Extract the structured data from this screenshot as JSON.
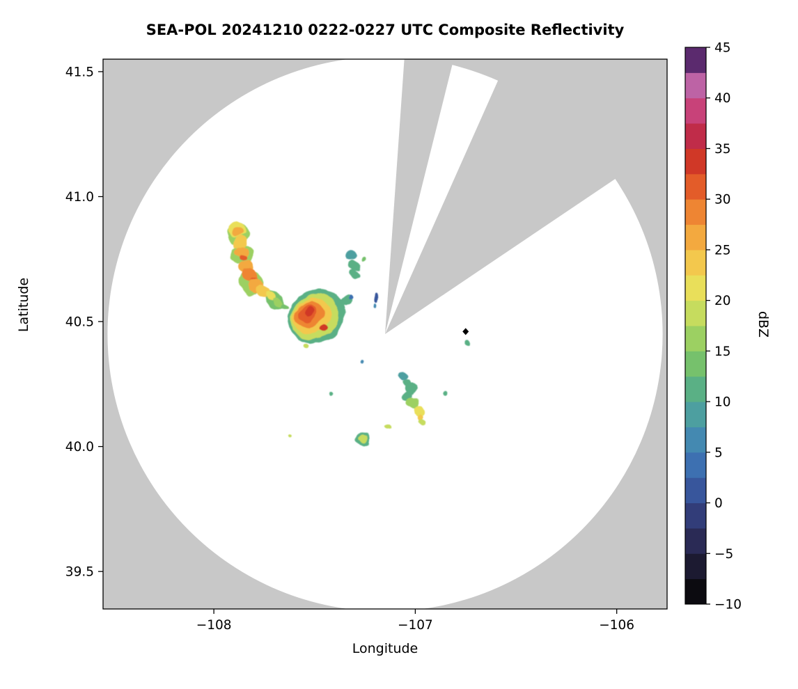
{
  "chart_data": {
    "type": "heatmap",
    "title": "SEA-POL 20241210 0222-0227 UTC Composite Reflectivity",
    "xlabel": "Longitude",
    "ylabel": "Latitude",
    "xlim": [
      -108.55,
      -105.75
    ],
    "ylim": [
      39.35,
      41.55
    ],
    "xticks": [
      -108,
      -107,
      -106
    ],
    "xtick_labels": [
      "−108",
      "−107",
      "−106"
    ],
    "yticks": [
      39.5,
      40.0,
      40.5,
      41.0,
      41.5
    ],
    "ytick_labels": [
      "39.5",
      "40.0",
      "40.5",
      "41.0",
      "41.5"
    ],
    "grid": false,
    "background_outside_range_color": "#c8c8c8",
    "coverage": {
      "center_lon": -107.15,
      "center_lat": 40.45,
      "radius_deg_lat": 1.11,
      "fill_color": "#ffffff",
      "blocked_sectors": [
        {
          "azimuth_start_deg": 4,
          "azimuth_end_deg": 14
        },
        {
          "azimuth_start_deg": 24,
          "azimuth_end_deg": 56
        }
      ]
    },
    "site_marker": {
      "lon": -106.75,
      "lat": 40.46,
      "shape": "diamond",
      "color": "#000000"
    },
    "colorbar": {
      "label": "dBZ",
      "vmin": -10,
      "vmax": 45,
      "bin_size": 2.5,
      "ticks": [
        45,
        40,
        35,
        30,
        25,
        20,
        15,
        10,
        5,
        0,
        -5,
        -10
      ],
      "tick_labels": [
        "45",
        "40",
        "35",
        "30",
        "25",
        "20",
        "15",
        "10",
        "5",
        "0",
        "−5",
        "−10"
      ],
      "colors_bottom_to_top": [
        "#0c0b10",
        "#1c1a31",
        "#2a2a55",
        "#323d79",
        "#38569c",
        "#3d70b1",
        "#4489b1",
        "#4d9fa0",
        "#5ab085",
        "#76c16c",
        "#9cd062",
        "#c6dc5e",
        "#e9df5a",
        "#f3c84d",
        "#f3a93f",
        "#ee8533",
        "#e35c29",
        "#d03827",
        "#c02c49",
        "#c84279",
        "#bd63a5",
        "#5b2a6e"
      ]
    },
    "echo_cells": {
      "columns": [
        "lon",
        "lat",
        "rx_deg",
        "ry_deg",
        "dbz",
        "rotation_deg"
      ],
      "rows": [
        [
          -107.88,
          40.855,
          0.055,
          0.042,
          17,
          -15
        ],
        [
          -107.86,
          40.77,
          0.05,
          0.04,
          17,
          0
        ],
        [
          -107.815,
          40.655,
          0.065,
          0.05,
          17,
          32
        ],
        [
          -107.7,
          40.585,
          0.055,
          0.032,
          13,
          32
        ],
        [
          -107.885,
          40.87,
          0.042,
          0.028,
          22,
          -15
        ],
        [
          -107.885,
          40.862,
          0.026,
          0.017,
          27,
          -15
        ],
        [
          -107.87,
          40.82,
          0.033,
          0.024,
          24,
          0
        ],
        [
          -107.862,
          40.78,
          0.028,
          0.021,
          26,
          0
        ],
        [
          -107.858,
          40.758,
          0.014,
          0.011,
          30,
          0
        ],
        [
          -107.84,
          40.72,
          0.034,
          0.027,
          26,
          15
        ],
        [
          -107.822,
          40.685,
          0.038,
          0.028,
          28,
          30
        ],
        [
          -107.8,
          40.662,
          0.021,
          0.014,
          31,
          30
        ],
        [
          -107.79,
          40.64,
          0.042,
          0.028,
          27,
          33
        ],
        [
          -107.757,
          40.617,
          0.033,
          0.021,
          24,
          33
        ],
        [
          -107.72,
          40.598,
          0.028,
          0.017,
          20,
          33
        ],
        [
          -107.68,
          40.578,
          0.026,
          0.014,
          17,
          33
        ],
        [
          -107.645,
          40.562,
          0.02,
          0.011,
          14,
          33
        ],
        [
          -107.49,
          40.52,
          0.148,
          0.105,
          12,
          -28
        ],
        [
          -107.5,
          40.52,
          0.125,
          0.085,
          18,
          -28
        ],
        [
          -107.515,
          40.525,
          0.1,
          0.065,
          24,
          -25
        ],
        [
          -107.53,
          40.53,
          0.075,
          0.048,
          29,
          -22
        ],
        [
          -107.54,
          40.535,
          0.048,
          0.032,
          31,
          -20
        ],
        [
          -107.532,
          40.543,
          0.026,
          0.018,
          34,
          0
        ],
        [
          -107.455,
          40.48,
          0.02,
          0.014,
          33,
          0
        ],
        [
          -107.345,
          40.585,
          0.028,
          0.02,
          11,
          -30
        ],
        [
          -107.322,
          40.595,
          0.012,
          0.009,
          4,
          0
        ],
        [
          -107.54,
          40.4,
          0.014,
          0.01,
          18,
          0
        ],
        [
          -107.315,
          40.76,
          0.025,
          0.018,
          9,
          0
        ],
        [
          -107.295,
          40.72,
          0.03,
          0.022,
          12,
          0
        ],
        [
          -107.3,
          40.685,
          0.022,
          0.015,
          10,
          0
        ],
        [
          -107.255,
          40.755,
          0.012,
          0.01,
          13,
          0
        ],
        [
          -107.195,
          40.595,
          0.011,
          0.016,
          2,
          0
        ],
        [
          -107.2,
          40.565,
          0.008,
          0.01,
          5,
          0
        ],
        [
          -107.27,
          40.34,
          0.009,
          0.008,
          6,
          0
        ],
        [
          -107.06,
          40.29,
          0.024,
          0.018,
          8,
          0
        ],
        [
          -107.045,
          40.26,
          0.02,
          0.015,
          11,
          0
        ],
        [
          -107.025,
          40.235,
          0.034,
          0.027,
          12,
          0
        ],
        [
          -107.04,
          40.2,
          0.028,
          0.02,
          10,
          0
        ],
        [
          -107.01,
          40.175,
          0.032,
          0.024,
          15,
          0
        ],
        [
          -106.985,
          40.14,
          0.028,
          0.02,
          20,
          0
        ],
        [
          -106.972,
          40.12,
          0.016,
          0.012,
          24,
          0
        ],
        [
          -106.96,
          40.1,
          0.02,
          0.014,
          18,
          0
        ],
        [
          -107.133,
          40.085,
          0.016,
          0.012,
          18,
          0
        ],
        [
          -107.26,
          40.03,
          0.038,
          0.025,
          12,
          0
        ],
        [
          -107.258,
          40.032,
          0.024,
          0.016,
          19,
          0
        ],
        [
          -107.42,
          40.21,
          0.012,
          0.009,
          10,
          0
        ],
        [
          -106.85,
          40.215,
          0.012,
          0.009,
          10,
          0
        ],
        [
          -106.737,
          40.42,
          0.014,
          0.011,
          12,
          0
        ],
        [
          -107.62,
          40.04,
          0.008,
          0.006,
          18,
          0
        ]
      ]
    }
  }
}
